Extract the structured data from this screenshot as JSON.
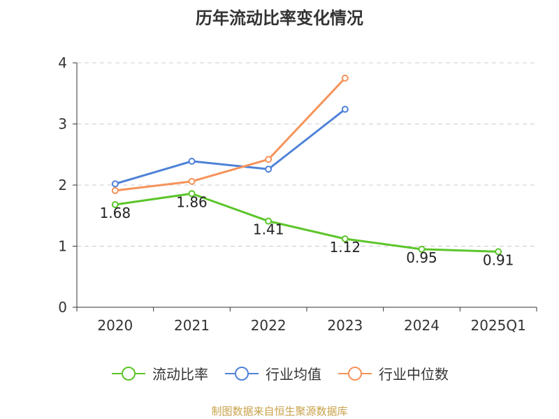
{
  "title": "历年流动比率变化情况",
  "source": "制图数据来自恒生聚源数据库",
  "chart_data": {
    "type": "line",
    "title": "历年流动比率变化情况",
    "categories": [
      "2020",
      "2021",
      "2022",
      "2023",
      "2024",
      "2025Q1"
    ],
    "ylim": [
      0,
      4
    ],
    "yticks": [
      0,
      1,
      2,
      3,
      4
    ],
    "grid": true,
    "legend_position": "bottom",
    "series": [
      {
        "name": "流动比率",
        "color": "#5cc52b",
        "values": [
          1.68,
          1.86,
          1.41,
          1.12,
          0.95,
          0.91
        ],
        "labels": [
          "1.68",
          "1.86",
          "1.41",
          "1.12",
          "0.95",
          "0.91"
        ]
      },
      {
        "name": "行业均值",
        "color": "#4e82d8",
        "values": [
          2.02,
          2.39,
          2.26,
          3.24,
          null,
          null
        ]
      },
      {
        "name": "行业中位数",
        "color": "#f5935a",
        "values": [
          1.91,
          2.06,
          2.42,
          3.75,
          null,
          null
        ]
      }
    ]
  }
}
